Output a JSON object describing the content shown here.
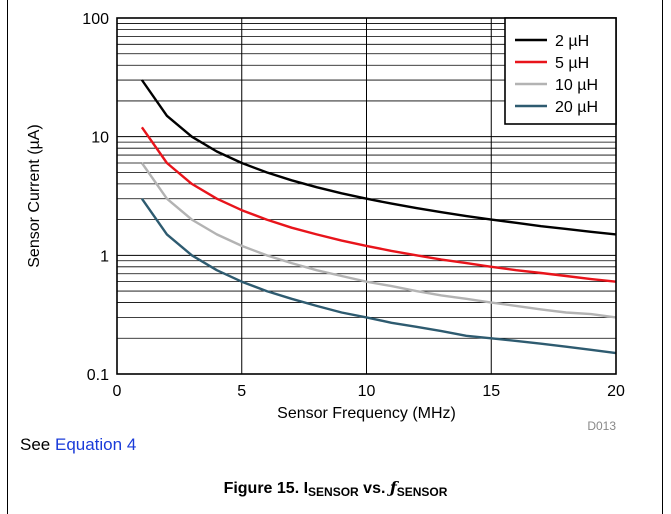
{
  "chart_data": {
    "type": "line",
    "xlabel": "Sensor Frequency (MHz)",
    "ylabel": "Sensor Current (µA)",
    "xlim": [
      0,
      20
    ],
    "ylim": [
      0.1,
      100
    ],
    "yscale": "log",
    "grid": true,
    "legend_position": "top-right",
    "x_ticks": [
      "0",
      "5",
      "10",
      "15",
      "20"
    ],
    "y_ticks": [
      "0.1",
      "1",
      "10",
      "100"
    ],
    "code": "D013",
    "series": [
      {
        "name": "2 µH",
        "color": "#000000",
        "x": [
          1,
          2,
          3,
          4,
          5,
          6,
          7,
          8,
          9,
          10,
          11,
          12,
          13,
          14,
          15,
          16,
          17,
          18,
          19,
          20
        ],
        "y": [
          30,
          15,
          10,
          7.5,
          6,
          5,
          4.29,
          3.75,
          3.33,
          3,
          2.73,
          2.5,
          2.31,
          2.14,
          2,
          1.88,
          1.76,
          1.67,
          1.58,
          1.5
        ]
      },
      {
        "name": "5 µH",
        "color": "#e8141b",
        "x": [
          1,
          2,
          3,
          4,
          5,
          6,
          7,
          8,
          9,
          10,
          11,
          12,
          13,
          14,
          15,
          16,
          17,
          18,
          19,
          20
        ],
        "y": [
          12,
          6,
          4,
          3,
          2.4,
          2,
          1.71,
          1.5,
          1.33,
          1.2,
          1.09,
          1,
          0.92,
          0.86,
          0.8,
          0.75,
          0.71,
          0.67,
          0.63,
          0.6
        ]
      },
      {
        "name": "10 µH",
        "color": "#b3b3b3",
        "x": [
          1,
          2,
          3,
          4,
          5,
          6,
          7,
          8,
          9,
          10,
          11,
          12,
          13,
          14,
          15,
          16,
          17,
          18,
          19,
          20
        ],
        "y": [
          6,
          3,
          2,
          1.5,
          1.2,
          1,
          0.86,
          0.75,
          0.67,
          0.6,
          0.55,
          0.5,
          0.46,
          0.43,
          0.4,
          0.375,
          0.35,
          0.33,
          0.32,
          0.3
        ]
      },
      {
        "name": "20 µH",
        "color": "#2e5b70",
        "x": [
          1,
          2,
          3,
          4,
          5,
          6,
          7,
          8,
          9,
          10,
          11,
          12,
          13,
          14,
          15,
          16,
          17,
          18,
          19,
          20
        ],
        "y": [
          3,
          1.5,
          1,
          0.75,
          0.6,
          0.5,
          0.43,
          0.375,
          0.33,
          0.3,
          0.27,
          0.25,
          0.23,
          0.21,
          0.2,
          0.19,
          0.18,
          0.17,
          0.16,
          0.15
        ]
      }
    ]
  },
  "note": {
    "prefix": "See ",
    "link": "Equation 4"
  },
  "caption": {
    "prefix": "Figure 15. I",
    "sub1": "SENSOR",
    "mid": " vs. ",
    "italic": "ƒ",
    "sub2": "SENSOR"
  }
}
